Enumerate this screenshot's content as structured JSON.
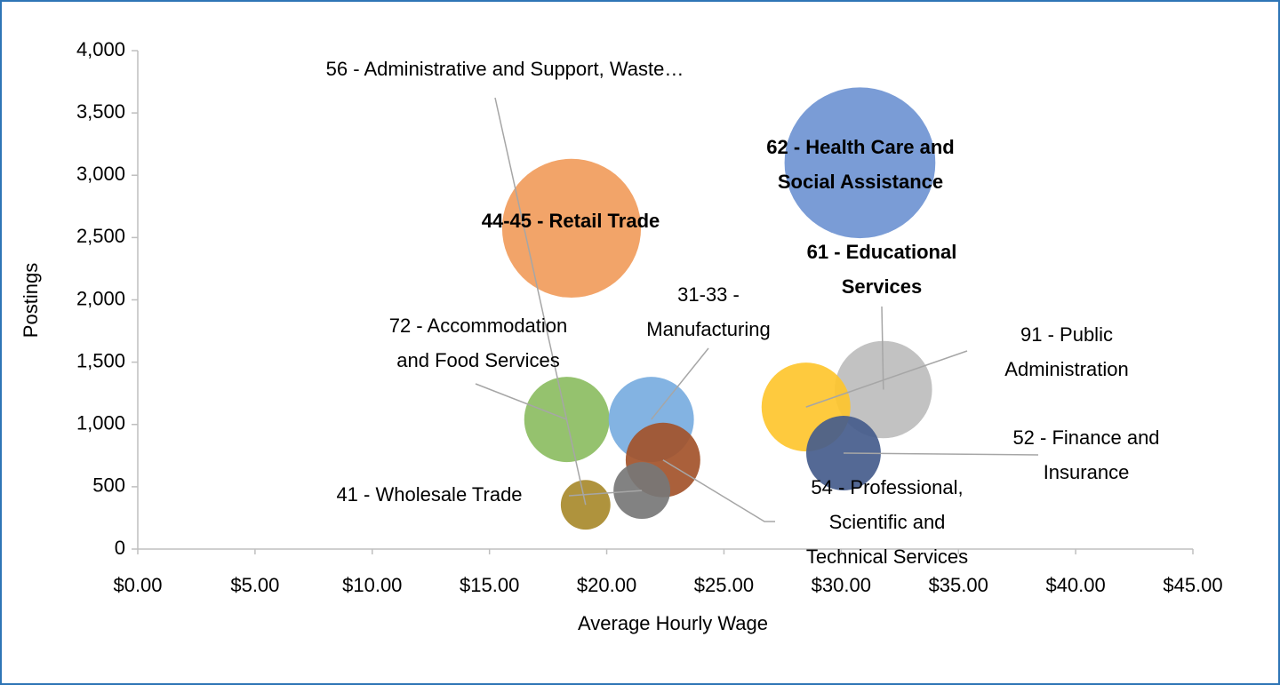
{
  "chart_data": {
    "type": "bubble",
    "x_label": "Average Hourly Wage",
    "y_label": "Postings",
    "xlim": [
      0,
      45
    ],
    "xticks": [
      {
        "value": 0,
        "label": "$0.00"
      },
      {
        "value": 5,
        "label": "$5.00"
      },
      {
        "value": 10,
        "label": "$10.00"
      },
      {
        "value": 15,
        "label": "$15.00"
      },
      {
        "value": 20,
        "label": "$20.00"
      },
      {
        "value": 25,
        "label": "$25.00"
      },
      {
        "value": 30,
        "label": "$30.00"
      },
      {
        "value": 35,
        "label": "$35.00"
      },
      {
        "value": 40,
        "label": "$40.00"
      },
      {
        "value": 45,
        "label": "$45.00"
      }
    ],
    "ylim": [
      0,
      4000
    ],
    "yticks": [
      0,
      500,
      {
        "value": 1000,
        "label": "1,000"
      },
      {
        "value": 1500,
        "label": "1,500"
      },
      {
        "value": 2000,
        "label": "2,000"
      },
      {
        "value": 2500,
        "label": "2,500"
      },
      {
        "value": 3000,
        "label": "3,000"
      },
      {
        "value": 3500,
        "label": "3,500"
      },
      {
        "value": 4000,
        "label": "4,000"
      }
    ],
    "grid": false,
    "points": [
      {
        "label": [
          "62 - Health Care and",
          "Social Assistance"
        ],
        "bold": true,
        "x": 30.8,
        "y": 3100,
        "size": 7200,
        "color": "#6f94d2"
      },
      {
        "label": [
          "44-45 - Retail Trade"
        ],
        "bold": true,
        "x": 18.5,
        "y": 2575,
        "size": 6100,
        "color": "#f19c5c"
      },
      {
        "label": [
          "61 - Educational",
          "Services"
        ],
        "bold": true,
        "x": 31.8,
        "y": 1280,
        "size": 3000,
        "color": "#bdbdbd"
      },
      {
        "label": [
          "91 - Public",
          "Administration"
        ],
        "bold": false,
        "x": 28.5,
        "y": 1140,
        "size": 2500,
        "color": "#fec52e"
      },
      {
        "label": [
          "72 - Accommodation",
          "and Food Services"
        ],
        "bold": false,
        "x": 18.3,
        "y": 1040,
        "size": 2300,
        "color": "#8cbd62"
      },
      {
        "label": [
          "31-33 -",
          "Manufacturing"
        ],
        "bold": false,
        "x": 21.9,
        "y": 1040,
        "size": 2300,
        "color": "#78acdf"
      },
      {
        "label": [
          "54 - Professional,",
          "Scientific and",
          "Technical Services"
        ],
        "bold": false,
        "x": 22.4,
        "y": 715,
        "size": 1760,
        "color": "#a3532a"
      },
      {
        "label": [
          "52 - Finance and",
          "Insurance"
        ],
        "bold": false,
        "x": 30.1,
        "y": 770,
        "size": 1760,
        "color": "#455c8c"
      },
      {
        "label": [
          "41 - Wholesale Trade"
        ],
        "bold": false,
        "x": 21.5,
        "y": 470,
        "size": 1020,
        "color": "#777777"
      },
      {
        "label": [
          "56 - Administrative and Support, Waste…"
        ],
        "bold": false,
        "x": 19.1,
        "y": 355,
        "size": 780,
        "color": "#a88a2c"
      }
    ]
  }
}
